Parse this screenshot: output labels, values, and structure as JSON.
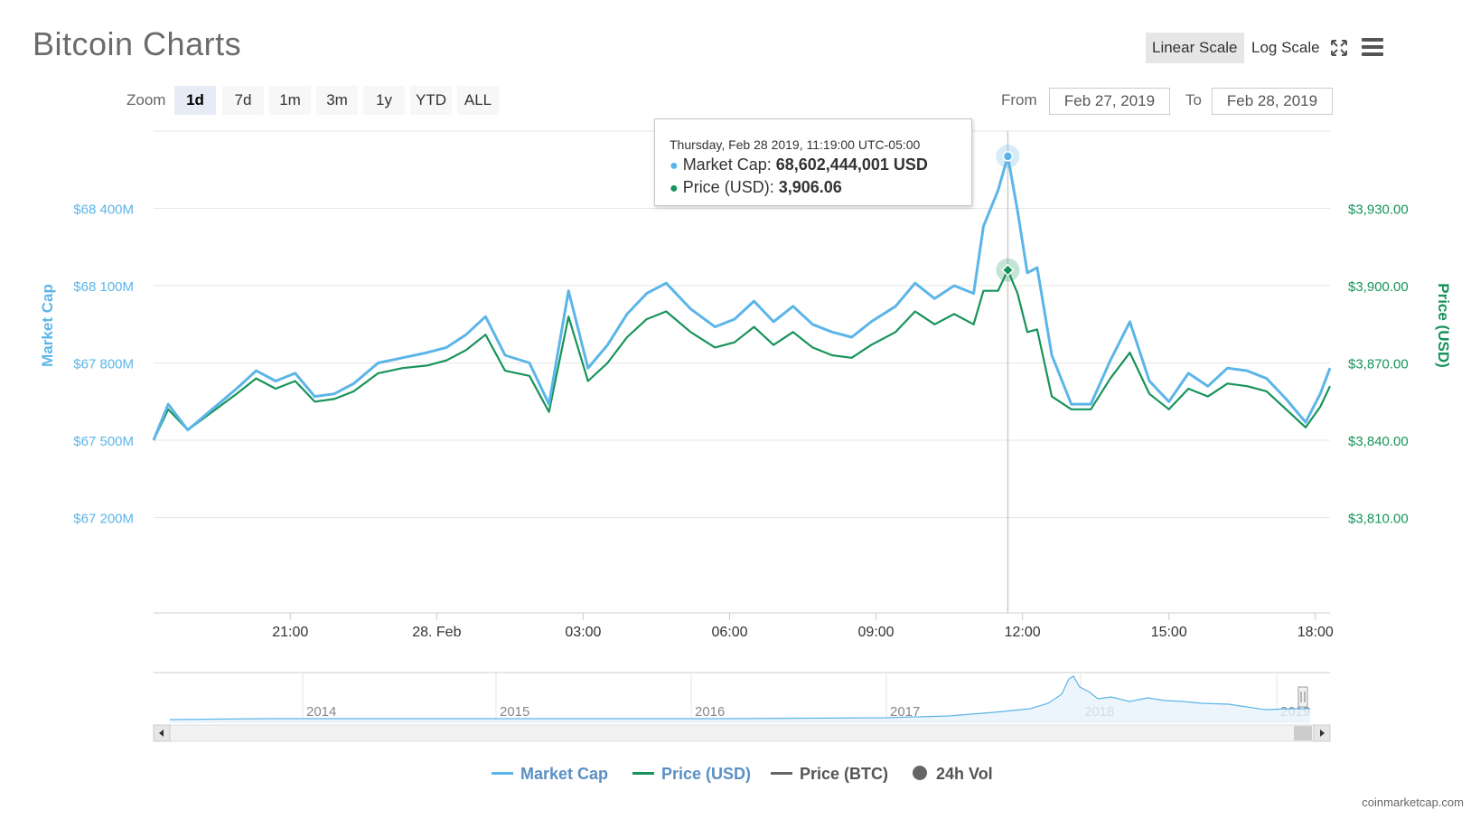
{
  "header": {
    "title": "Bitcoin Charts",
    "linear_scale": "Linear Scale",
    "log_scale": "Log Scale",
    "active_scale": "linear"
  },
  "toolbar": {
    "zoom_label": "Zoom",
    "zoom_buttons": [
      "1d",
      "7d",
      "1m",
      "3m",
      "1y",
      "YTD",
      "ALL"
    ],
    "active_zoom": "1d",
    "from_label": "From",
    "from_value": "Feb 27, 2019",
    "to_label": "To",
    "to_value": "Feb 28, 2019"
  },
  "tooltip": {
    "timestamp": "Thursday, Feb 28 2019, 11:19:00 UTC-05:00",
    "market_cap_label": "Market Cap:",
    "market_cap_value": "68,602,444,001 USD",
    "price_label": "Price (USD):",
    "price_value": "3,906.06"
  },
  "legend": {
    "market_cap": "Market Cap",
    "price_usd": "Price (USD)",
    "price_btc": "Price (BTC)",
    "volume": "24h Vol"
  },
  "credit": "coinmarketcap.com",
  "colors": {
    "market_cap": "#5cb5e8",
    "price": "#17935a",
    "price_btc": "#666666",
    "volume": "#666666"
  },
  "chart_data": {
    "type": "line",
    "title": "Bitcoin Charts",
    "ylabel_left": "Market Cap",
    "ylabel_right": "Price (USD)",
    "left_axis": {
      "ticks": [
        67200,
        67500,
        67800,
        68100,
        68400
      ],
      "tick_labels": [
        "$67 200M",
        "$67 500M",
        "$67 800M",
        "$68 100M",
        "$68 400M"
      ],
      "unit": "millions USD",
      "range": [
        66830,
        68700
      ]
    },
    "right_axis": {
      "ticks": [
        3810,
        3840,
        3870,
        3900,
        3930
      ],
      "tick_labels": [
        "$3,810.00",
        "$3,840.00",
        "$3,870.00",
        "$3,900.00",
        "$3,930.00"
      ],
      "unit": "USD",
      "range": [
        3773,
        3960
      ]
    },
    "x_axis": {
      "start_hours": 18.2,
      "end_hours": 42.3,
      "ticks": [
        21,
        24,
        27,
        30,
        33,
        36,
        39,
        42
      ],
      "tick_labels": [
        "21:00",
        "28. Feb",
        "03:00",
        "06:00",
        "09:00",
        "12:00",
        "15:00",
        "18:00"
      ],
      "tick_hours_note": "hours counted from 00:00 Feb 27, 2019"
    },
    "series": [
      {
        "name": "Market Cap",
        "unit": "millions USD",
        "x": [
          18.2,
          18.5,
          18.9,
          19.4,
          19.9,
          20.3,
          20.7,
          21.1,
          21.5,
          21.9,
          22.3,
          22.8,
          23.3,
          23.8,
          24.2,
          24.6,
          25.0,
          25.4,
          25.9,
          26.3,
          26.7,
          27.1,
          27.5,
          27.9,
          28.3,
          28.7,
          29.2,
          29.7,
          30.1,
          30.5,
          30.9,
          31.3,
          31.7,
          32.1,
          32.5,
          32.9,
          33.4,
          33.8,
          34.2,
          34.6,
          35.0,
          35.2,
          35.5,
          35.7,
          35.9,
          36.1,
          36.3,
          36.6,
          37.0,
          37.4,
          37.8,
          38.2,
          38.6,
          39.0,
          39.4,
          39.8,
          40.2,
          40.6,
          41.0,
          41.4,
          41.8,
          42.1,
          42.3
        ],
        "y": [
          67500,
          67640,
          67540,
          67620,
          67700,
          67770,
          67730,
          67760,
          67670,
          67680,
          67720,
          67800,
          67820,
          67840,
          67860,
          67910,
          67980,
          67830,
          67800,
          67640,
          68080,
          67780,
          67870,
          67990,
          68070,
          68110,
          68010,
          67940,
          67970,
          68040,
          67960,
          68020,
          67950,
          67920,
          67900,
          67960,
          68020,
          68110,
          68050,
          68100,
          68070,
          68330,
          68470,
          68602,
          68390,
          68150,
          68170,
          67830,
          67640,
          67640,
          67810,
          67960,
          67730,
          67650,
          67760,
          67710,
          67780,
          67770,
          67740,
          67660,
          67570,
          67680,
          67780
        ]
      },
      {
        "name": "Price (USD)",
        "unit": "USD",
        "x": [
          18.2,
          18.5,
          18.9,
          19.4,
          19.9,
          20.3,
          20.7,
          21.1,
          21.5,
          21.9,
          22.3,
          22.8,
          23.3,
          23.8,
          24.2,
          24.6,
          25.0,
          25.4,
          25.9,
          26.3,
          26.7,
          27.1,
          27.5,
          27.9,
          28.3,
          28.7,
          29.2,
          29.7,
          30.1,
          30.5,
          30.9,
          31.3,
          31.7,
          32.1,
          32.5,
          32.9,
          33.4,
          33.8,
          34.2,
          34.6,
          35.0,
          35.2,
          35.5,
          35.7,
          35.9,
          36.1,
          36.3,
          36.6,
          37.0,
          37.4,
          37.8,
          38.2,
          38.6,
          39.0,
          39.4,
          39.8,
          40.2,
          40.6,
          41.0,
          41.4,
          41.8,
          42.1,
          42.3
        ],
        "y": [
          3840,
          3852,
          3844,
          3851,
          3858,
          3864,
          3860,
          3863,
          3855,
          3856,
          3859,
          3866,
          3868,
          3869,
          3871,
          3875,
          3881,
          3867,
          3865,
          3851,
          3888,
          3863,
          3870,
          3880,
          3887,
          3890,
          3882,
          3876,
          3878,
          3884,
          3877,
          3882,
          3876,
          3873,
          3872,
          3877,
          3882,
          3890,
          3885,
          3889,
          3885,
          3898,
          3898,
          3906,
          3897,
          3882,
          3883,
          3857,
          3852,
          3852,
          3864,
          3874,
          3858,
          3852,
          3860,
          3857,
          3862,
          3861,
          3859,
          3852,
          3845,
          3853,
          3861
        ]
      }
    ],
    "navigator": {
      "tick_labels": [
        "2014",
        "2015",
        "2016",
        "2017",
        "2018",
        "2019"
      ]
    },
    "tooltip_point": {
      "x": 35.7,
      "market_cap": 68602,
      "price": 3906.06
    },
    "grid": true,
    "legend_position": "bottom-center"
  }
}
